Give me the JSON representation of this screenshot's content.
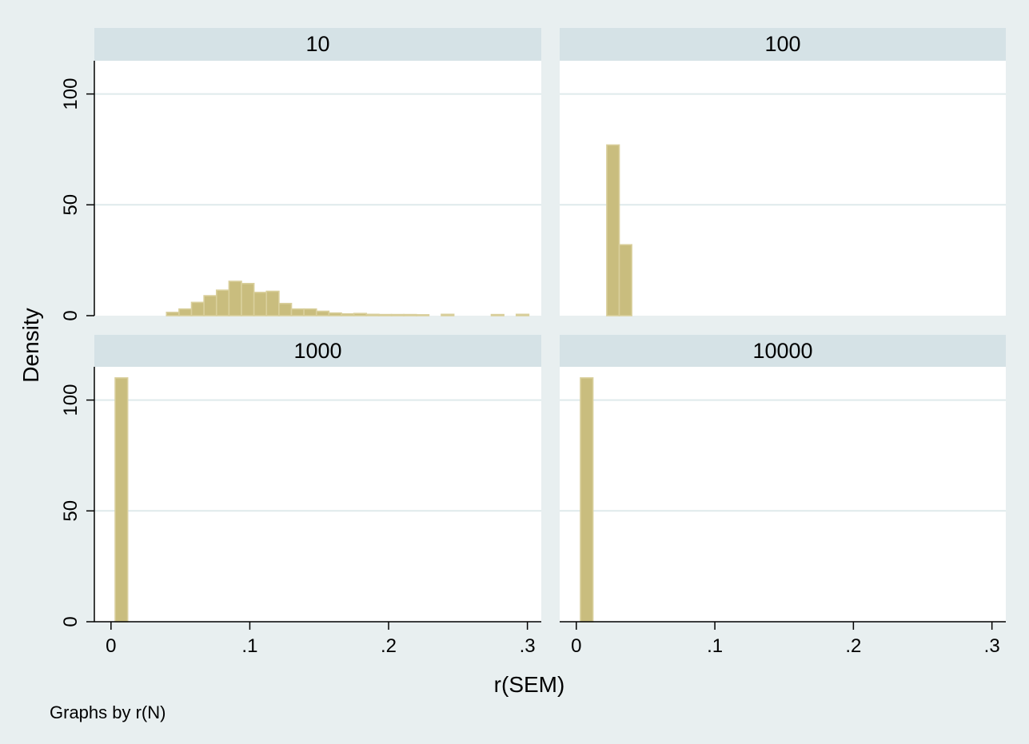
{
  "figure": {
    "ylabel": "Density",
    "xlabel": "r(SEM)",
    "note": "Graphs by r(N)",
    "colors": {
      "background": "#e8eff0",
      "panel_header": "#d5e2e6",
      "plot_area": "#ffffff",
      "gridline": "#dfeaec",
      "bar_fill": "#c9bd7e",
      "bar_edge": "#d9cf9c",
      "axis": "#000000"
    }
  },
  "chart_data": [
    {
      "type": "bar",
      "panel": "10",
      "title": "10",
      "xlim": [
        -0.012,
        0.31
      ],
      "ylim": [
        0,
        115
      ],
      "xticks": [
        0,
        0.1,
        0.2,
        0.3
      ],
      "xtick_labels": [
        "0",
        ".1",
        ".2",
        ".3"
      ],
      "yticks": [
        0,
        50,
        100
      ],
      "ytick_labels": [
        "0",
        "50",
        "100"
      ],
      "bin_width": 0.009,
      "bin_starts": [
        0.04,
        0.049,
        0.058,
        0.067,
        0.076,
        0.085,
        0.094,
        0.103,
        0.112,
        0.121,
        0.13,
        0.139,
        0.148,
        0.157,
        0.166,
        0.175,
        0.184,
        0.193,
        0.202,
        0.211,
        0.22,
        0.238,
        0.274,
        0.292
      ],
      "values": [
        1.5,
        3,
        6,
        9,
        11.5,
        15.5,
        14.5,
        10.5,
        11,
        5.5,
        3,
        3,
        2,
        1.2,
        0.8,
        1,
        0.6,
        0.5,
        0.5,
        0.5,
        0.4,
        0.6,
        0.5,
        0.6
      ]
    },
    {
      "type": "bar",
      "panel": "100",
      "title": "100",
      "xlim": [
        -0.012,
        0.31
      ],
      "ylim": [
        0,
        115
      ],
      "xticks": [
        0,
        0.1,
        0.2,
        0.3
      ],
      "xtick_labels": [
        "0",
        ".1",
        ".2",
        ".3"
      ],
      "yticks": [
        0,
        50,
        100
      ],
      "ytick_labels": [
        "0",
        "50",
        "100"
      ],
      "bin_width": 0.009,
      "bin_starts": [
        0.022,
        0.031
      ],
      "values": [
        77,
        32
      ]
    },
    {
      "type": "bar",
      "panel": "1000",
      "title": "1000",
      "xlim": [
        -0.012,
        0.31
      ],
      "ylim": [
        0,
        115
      ],
      "xticks": [
        0,
        0.1,
        0.2,
        0.3
      ],
      "xtick_labels": [
        "0",
        ".1",
        ".2",
        ".3"
      ],
      "yticks": [
        0,
        50,
        100
      ],
      "ytick_labels": [
        "0",
        "50",
        "100"
      ],
      "bin_width": 0.009,
      "bin_starts": [
        0.003
      ],
      "values": [
        110
      ]
    },
    {
      "type": "bar",
      "panel": "10000",
      "title": "10000",
      "xlim": [
        -0.012,
        0.31
      ],
      "ylim": [
        0,
        115
      ],
      "xticks": [
        0,
        0.1,
        0.2,
        0.3
      ],
      "xtick_labels": [
        "0",
        ".1",
        ".2",
        ".3"
      ],
      "yticks": [
        0,
        50,
        100
      ],
      "ytick_labels": [
        "0",
        "50",
        "100"
      ],
      "bin_width": 0.009,
      "bin_starts": [
        0.003
      ],
      "values": [
        110
      ]
    }
  ]
}
